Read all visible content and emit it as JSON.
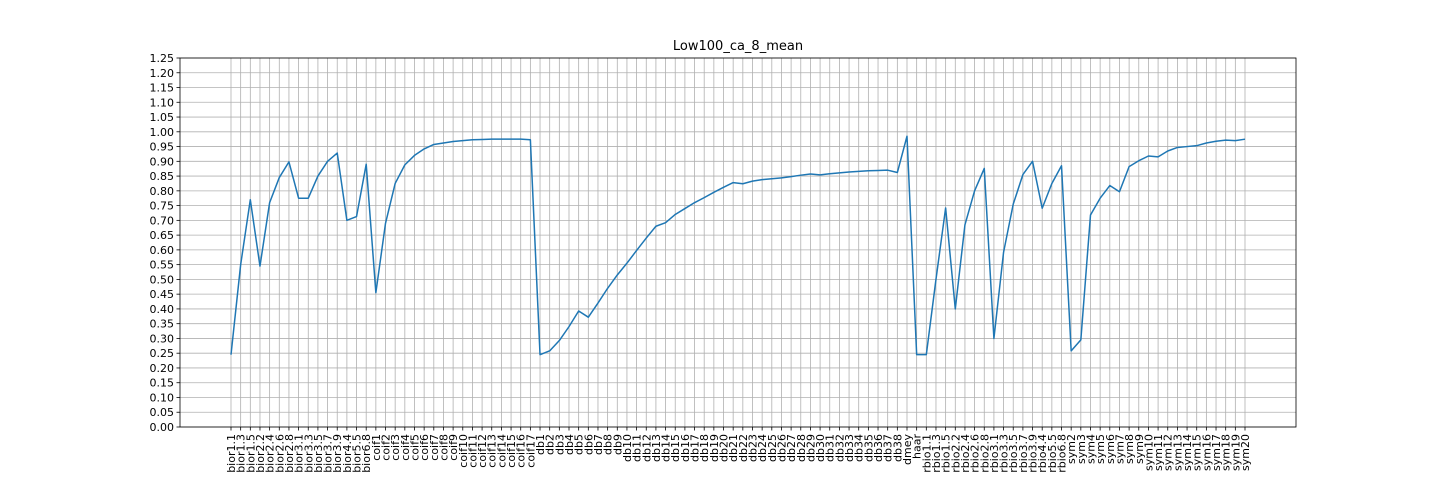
{
  "chart_data": {
    "type": "line",
    "title": "Low100_ca_8_mean",
    "xlabel": "",
    "ylabel": "",
    "ylim": [
      0,
      1.25
    ],
    "yticks": [
      "0.00",
      "0.05",
      "0.10",
      "0.15",
      "0.20",
      "0.25",
      "0.30",
      "0.35",
      "0.40",
      "0.45",
      "0.50",
      "0.55",
      "0.60",
      "0.65",
      "0.70",
      "0.75",
      "0.80",
      "0.85",
      "0.90",
      "0.95",
      "1.00",
      "1.05",
      "1.10",
      "1.15",
      "1.20",
      "1.25"
    ],
    "grid": true,
    "color": "#1f77b4",
    "categories": [
      "bior1.1",
      "bior1.3",
      "bior1.5",
      "bior2.2",
      "bior2.4",
      "bior2.6",
      "bior2.8",
      "bior3.1",
      "bior3.3",
      "bior3.5",
      "bior3.7",
      "bior3.9",
      "bior4.4",
      "bior5.5",
      "bior6.8",
      "coif1",
      "coif2",
      "coif3",
      "coif4",
      "coif5",
      "coif6",
      "coif7",
      "coif8",
      "coif9",
      "coif10",
      "coif11",
      "coif12",
      "coif13",
      "coif14",
      "coif15",
      "coif16",
      "coif17",
      "db1",
      "db2",
      "db3",
      "db4",
      "db5",
      "db6",
      "db7",
      "db8",
      "db9",
      "db10",
      "db11",
      "db12",
      "db13",
      "db14",
      "db15",
      "db16",
      "db17",
      "db18",
      "db19",
      "db20",
      "db21",
      "db22",
      "db23",
      "db24",
      "db25",
      "db26",
      "db27",
      "db28",
      "db29",
      "db30",
      "db31",
      "db32",
      "db33",
      "db34",
      "db35",
      "db36",
      "db37",
      "db38",
      "dmey",
      "haar",
      "rbio1.1",
      "rbio1.3",
      "rbio1.5",
      "rbio2.2",
      "rbio2.4",
      "rbio2.6",
      "rbio2.8",
      "rbio3.1",
      "rbio3.3",
      "rbio3.5",
      "rbio3.7",
      "rbio3.9",
      "rbio4.4",
      "rbio5.5",
      "rbio6.8",
      "sym2",
      "sym3",
      "sym4",
      "sym5",
      "sym6",
      "sym7",
      "sym8",
      "sym9",
      "sym10",
      "sym11",
      "sym12",
      "sym13",
      "sym14",
      "sym15",
      "sym16",
      "sym17",
      "sym18",
      "sym19",
      "sym20"
    ],
    "series": [
      {
        "values": [
          0.245,
          0.55,
          0.77,
          0.545,
          0.76,
          0.845,
          0.898,
          0.775,
          0.775,
          0.85,
          0.9,
          0.928,
          0.7,
          0.713,
          0.89,
          0.455,
          0.69,
          0.825,
          0.888,
          0.92,
          0.942,
          0.957,
          0.962,
          0.967,
          0.97,
          0.973,
          0.974,
          0.975,
          0.975,
          0.975,
          0.975,
          0.973,
          0.245,
          0.258,
          0.293,
          0.34,
          0.393,
          0.372,
          0.42,
          0.47,
          0.515,
          0.555,
          0.598,
          0.64,
          0.68,
          0.692,
          0.72,
          0.74,
          0.76,
          0.777,
          0.795,
          0.812,
          0.828,
          0.824,
          0.833,
          0.838,
          0.841,
          0.844,
          0.848,
          0.853,
          0.857,
          0.854,
          0.858,
          0.861,
          0.864,
          0.866,
          0.868,
          0.869,
          0.87,
          0.862,
          0.985,
          0.245,
          0.245,
          0.5,
          0.742,
          0.4,
          0.685,
          0.8,
          0.876,
          0.3,
          0.592,
          0.755,
          0.855,
          0.9,
          0.741,
          0.825,
          0.885,
          0.258,
          0.295,
          0.718,
          0.775,
          0.818,
          0.797,
          0.882,
          0.902,
          0.918,
          0.915,
          0.935,
          0.947,
          0.95,
          0.953,
          0.962,
          0.968,
          0.972,
          0.97,
          0.975
        ]
      }
    ]
  }
}
